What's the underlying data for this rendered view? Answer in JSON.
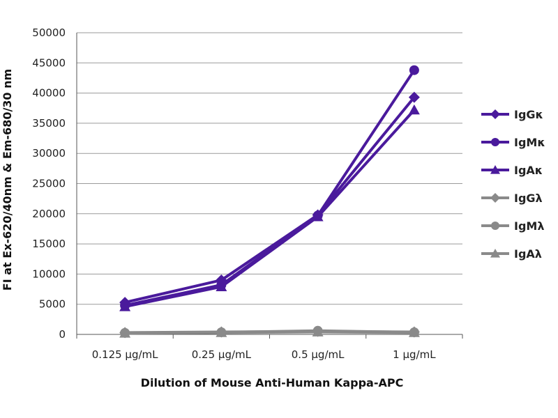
{
  "chart_data": {
    "type": "line",
    "title": "",
    "xlabel": "Dilution of Mouse Anti-Human Kappa-APC",
    "ylabel": "FI at Ex-620/40nm & Em-680/30 nm",
    "categories": [
      "0.125 µg/mL",
      "0.25 µg/mL",
      "0.5 µg/mL",
      "1 µg/mL"
    ],
    "ylim": [
      0,
      50000
    ],
    "yticks": [
      0,
      5000,
      10000,
      15000,
      20000,
      25000,
      30000,
      35000,
      40000,
      45000,
      50000
    ],
    "grid": true,
    "legend_position": "right",
    "series": [
      {
        "name": "IgGκ",
        "marker": "diamond",
        "color": "#4a1a9c",
        "values": [
          5300,
          9000,
          19800,
          39300
        ]
      },
      {
        "name": "IgMκ",
        "marker": "circle",
        "color": "#4a1a9c",
        "values": [
          4800,
          8200,
          19700,
          43800
        ]
      },
      {
        "name": "IgAκ",
        "marker": "triangle",
        "color": "#4a1a9c",
        "values": [
          4600,
          7900,
          19500,
          37200
        ]
      },
      {
        "name": "IgGλ",
        "marker": "diamond",
        "color": "#8a8a8a",
        "values": [
          300,
          400,
          500,
          400
        ]
      },
      {
        "name": "IgMλ",
        "marker": "circle",
        "color": "#8a8a8a",
        "values": [
          250,
          350,
          600,
          350
        ]
      },
      {
        "name": "IgAλ",
        "marker": "triangle",
        "color": "#8a8a8a",
        "values": [
          200,
          300,
          400,
          300
        ]
      }
    ]
  }
}
